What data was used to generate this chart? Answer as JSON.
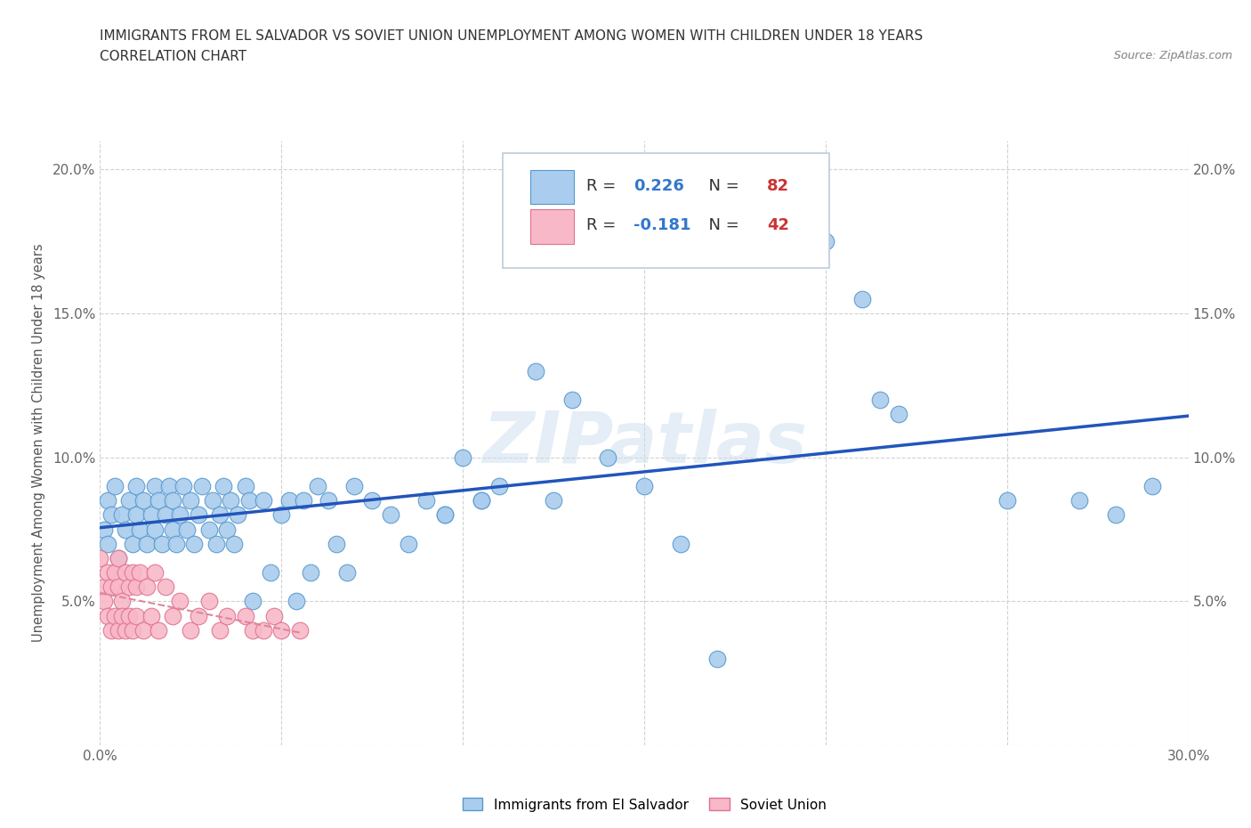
{
  "title_line1": "IMMIGRANTS FROM EL SALVADOR VS SOVIET UNION UNEMPLOYMENT AMONG WOMEN WITH CHILDREN UNDER 18 YEARS",
  "title_line2": "CORRELATION CHART",
  "source_text": "Source: ZipAtlas.com",
  "ylabel": "Unemployment Among Women with Children Under 18 years",
  "xlim": [
    0.0,
    0.3
  ],
  "ylim": [
    0.0,
    0.21
  ],
  "color_el_salvador_fill": "#aaccee",
  "color_el_salvador_edge": "#5599cc",
  "color_soviet_fill": "#f8b8c8",
  "color_soviet_edge": "#e07090",
  "color_el_line": "#2255bb",
  "color_so_line": "#dd8899",
  "watermark": "ZIPatlas",
  "el_salvador_x": [
    0.001,
    0.002,
    0.002,
    0.003,
    0.004,
    0.005,
    0.006,
    0.007,
    0.008,
    0.009,
    0.01,
    0.01,
    0.011,
    0.012,
    0.013,
    0.014,
    0.015,
    0.015,
    0.016,
    0.017,
    0.018,
    0.019,
    0.02,
    0.02,
    0.021,
    0.022,
    0.023,
    0.024,
    0.025,
    0.026,
    0.027,
    0.028,
    0.03,
    0.031,
    0.032,
    0.033,
    0.034,
    0.035,
    0.036,
    0.037,
    0.038,
    0.04,
    0.041,
    0.042,
    0.045,
    0.047,
    0.05,
    0.052,
    0.054,
    0.056,
    0.058,
    0.06,
    0.063,
    0.065,
    0.068,
    0.07,
    0.075,
    0.08,
    0.085,
    0.09,
    0.095,
    0.1,
    0.105,
    0.11,
    0.12,
    0.125,
    0.13,
    0.14,
    0.15,
    0.16,
    0.17,
    0.18,
    0.2,
    0.21,
    0.215,
    0.22,
    0.25,
    0.27,
    0.28,
    0.29,
    0.095,
    0.105
  ],
  "el_salvador_y": [
    0.075,
    0.085,
    0.07,
    0.08,
    0.09,
    0.065,
    0.08,
    0.075,
    0.085,
    0.07,
    0.08,
    0.09,
    0.075,
    0.085,
    0.07,
    0.08,
    0.09,
    0.075,
    0.085,
    0.07,
    0.08,
    0.09,
    0.075,
    0.085,
    0.07,
    0.08,
    0.09,
    0.075,
    0.085,
    0.07,
    0.08,
    0.09,
    0.075,
    0.085,
    0.07,
    0.08,
    0.09,
    0.075,
    0.085,
    0.07,
    0.08,
    0.09,
    0.085,
    0.05,
    0.085,
    0.06,
    0.08,
    0.085,
    0.05,
    0.085,
    0.06,
    0.09,
    0.085,
    0.07,
    0.06,
    0.09,
    0.085,
    0.08,
    0.07,
    0.085,
    0.08,
    0.1,
    0.085,
    0.09,
    0.13,
    0.085,
    0.12,
    0.1,
    0.09,
    0.07,
    0.03,
    0.175,
    0.175,
    0.155,
    0.12,
    0.115,
    0.085,
    0.085,
    0.08,
    0.09,
    0.08,
    0.085
  ],
  "soviet_union_x": [
    0.0,
    0.001,
    0.001,
    0.002,
    0.002,
    0.003,
    0.003,
    0.004,
    0.004,
    0.005,
    0.005,
    0.005,
    0.006,
    0.006,
    0.007,
    0.007,
    0.008,
    0.008,
    0.009,
    0.009,
    0.01,
    0.01,
    0.011,
    0.012,
    0.013,
    0.014,
    0.015,
    0.016,
    0.018,
    0.02,
    0.022,
    0.025,
    0.027,
    0.03,
    0.033,
    0.035,
    0.04,
    0.042,
    0.045,
    0.048,
    0.05,
    0.055
  ],
  "soviet_union_y": [
    0.065,
    0.055,
    0.05,
    0.06,
    0.045,
    0.055,
    0.04,
    0.06,
    0.045,
    0.055,
    0.04,
    0.065,
    0.05,
    0.045,
    0.06,
    0.04,
    0.055,
    0.045,
    0.06,
    0.04,
    0.055,
    0.045,
    0.06,
    0.04,
    0.055,
    0.045,
    0.06,
    0.04,
    0.055,
    0.045,
    0.05,
    0.04,
    0.045,
    0.05,
    0.04,
    0.045,
    0.045,
    0.04,
    0.04,
    0.045,
    0.04,
    0.04
  ]
}
